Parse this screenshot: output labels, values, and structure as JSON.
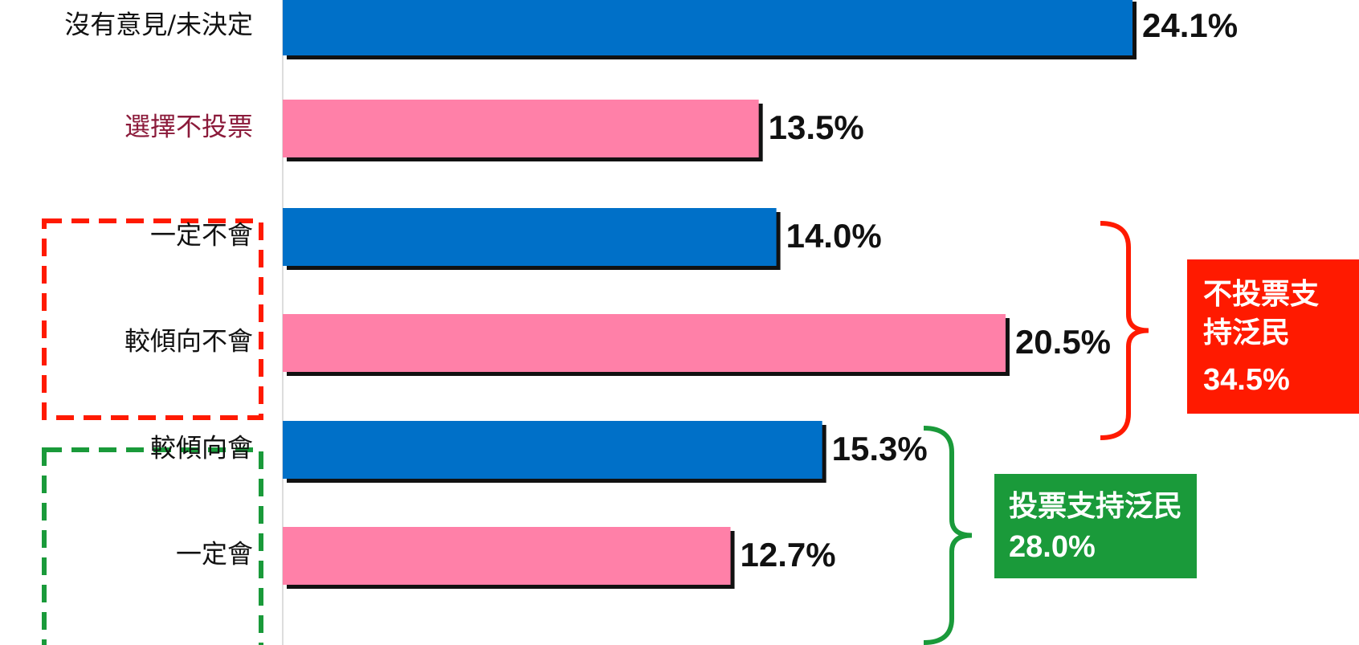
{
  "chart_data": {
    "type": "barh",
    "categories": [
      "沒有意見/未決定",
      "選擇不投票",
      "一定不會",
      "較傾向不會",
      "較傾向會",
      "一定會"
    ],
    "values": [
      24.1,
      13.5,
      14.0,
      20.5,
      15.3,
      12.7
    ],
    "value_labels": [
      "24.1%",
      "13.5%",
      "14.0%",
      "20.5%",
      "15.3%",
      "12.7%"
    ],
    "colors": [
      "#0070c8",
      "#ff80a8",
      "#0070c8",
      "#ff80a8",
      "#0070c8",
      "#ff80a8"
    ],
    "label_colors": [
      "#111111",
      "#8b1a3a",
      "#111111",
      "#111111",
      "#111111",
      "#111111"
    ],
    "annotations": [
      {
        "text": "不投票支持泛民",
        "value_label": "34.5%",
        "color": "#ff1a00"
      },
      {
        "text": "投票支持泛民",
        "value_label": "28.0%",
        "color": "#1a9a3a"
      }
    ]
  }
}
